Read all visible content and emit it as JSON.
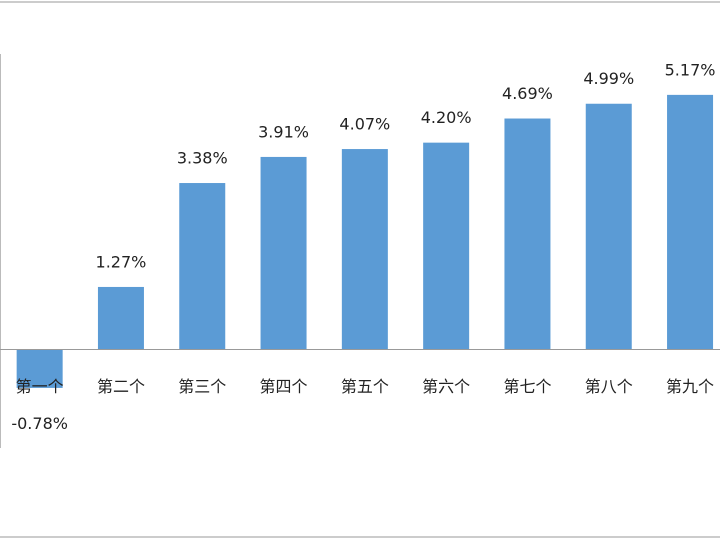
{
  "chart_data": {
    "type": "bar",
    "categories": [
      "第一个",
      "第二个",
      "第三个",
      "第四个",
      "第五个",
      "第六个",
      "第七个",
      "第八个",
      "第九个"
    ],
    "values": [
      -0.78,
      1.27,
      3.38,
      3.91,
      4.07,
      4.2,
      4.69,
      4.99,
      5.17
    ],
    "value_labels": [
      "-0.78%",
      "1.27%",
      "3.38%",
      "3.91%",
      "4.07%",
      "4.20%",
      "4.69%",
      "4.99%",
      "5.17%"
    ],
    "color": "#5b9bd5",
    "ylim": [
      -2,
      6
    ]
  }
}
